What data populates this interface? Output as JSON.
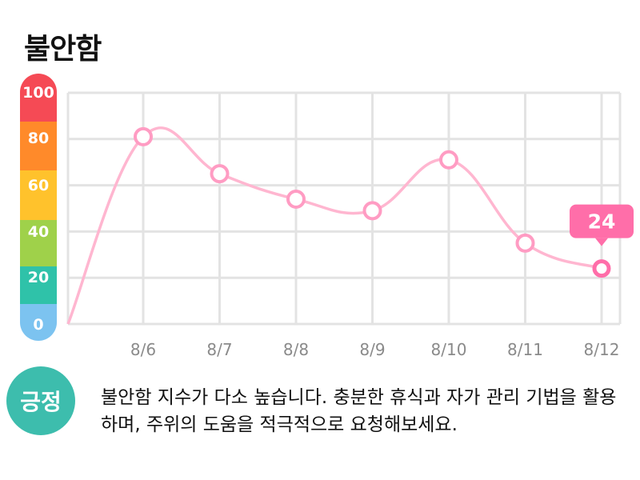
{
  "header": {
    "title": "불안함"
  },
  "chart_data": {
    "type": "line",
    "categories": [
      "8/6",
      "8/7",
      "8/8",
      "8/9",
      "8/10",
      "8/11",
      "8/12"
    ],
    "series": [
      {
        "values": [
          81,
          65,
          54,
          49,
          71,
          35,
          24
        ]
      }
    ],
    "start_value": 0,
    "ylim": [
      0,
      100
    ],
    "yticks": [
      "0",
      "20",
      "40",
      "60",
      "80",
      "100"
    ],
    "grid": true,
    "highlight": {
      "category": "8/12",
      "label": "24"
    },
    "scale_colors": [
      "#7cc3f0",
      "#2fc2a9",
      "#9fd14a",
      "#ffc22c",
      "#ff8a2a",
      "#f54a55"
    ],
    "line_color": "#ffb6d0",
    "marker_color": "#ff9cc3",
    "callout_color": "#ff6ea9"
  },
  "status": {
    "badge": "긍정",
    "badge_color": "#3dbdad",
    "message": "불안함 지수가 다소 높습니다. 충분한 휴식과 자가 관리 기법을 활용하며, 주위의 도움을 적극적으로 요청해보세요."
  }
}
